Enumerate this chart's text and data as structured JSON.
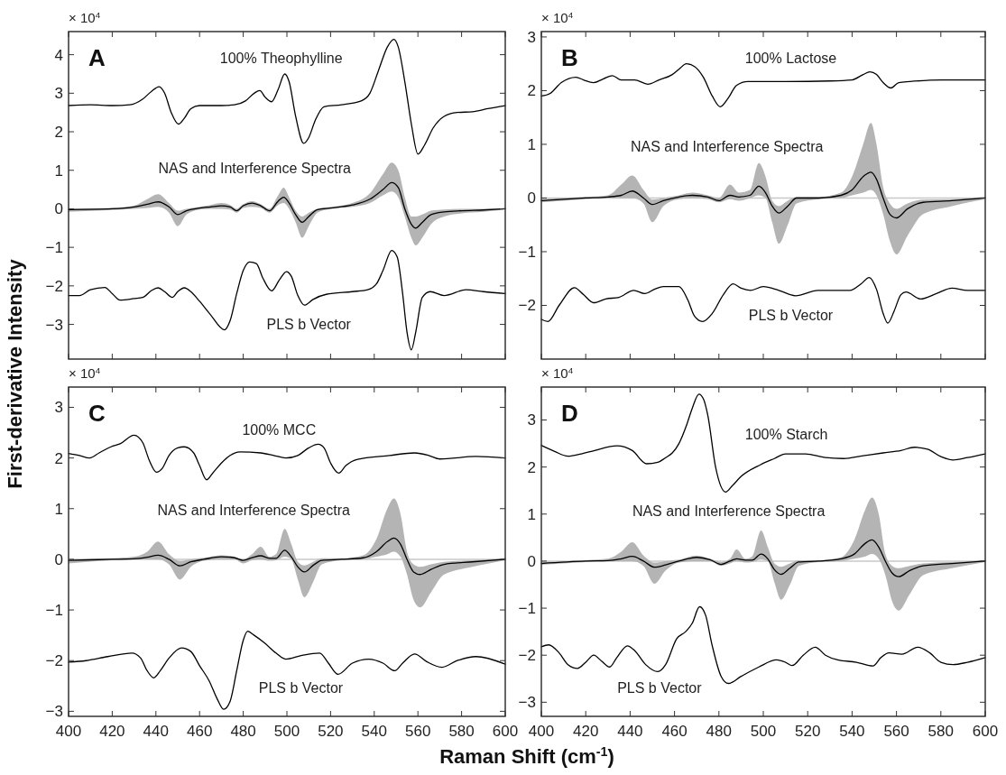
{
  "chart_data": [
    {
      "type": "line",
      "title": "A",
      "ylabel": "First-derivative Intensity",
      "tick_labels": "y",
      "xlim": [
        400,
        600
      ],
      "xticks": [
        400,
        420,
        440,
        460,
        480,
        500,
        520,
        540,
        560,
        580,
        600
      ],
      "ylim": [
        -3.9,
        4.6
      ],
      "yticks": [
        -3,
        -2,
        -1,
        0,
        1,
        2,
        3,
        4
      ],
      "annotations": [
        "× 10$^{4}$",
        "100% Theophylline",
        "NAS and Interference Spectra",
        "PLS b Vector"
      ],
      "series": [
        {
          "color": "#000000",
          "x": [
            400,
            410,
            420,
            428,
            434,
            438,
            441.5,
            444,
            447,
            450.3,
            453,
            456,
            460,
            470,
            476,
            481,
            485,
            487.6,
            490,
            493,
            496,
            499,
            501,
            504,
            507.7,
            510,
            513,
            517,
            525,
            534,
            538,
            542,
            546,
            549,
            551,
            554,
            557,
            560,
            563,
            567,
            572,
            578,
            585,
            592,
            600
          ],
          "values": [
            2.68,
            2.7,
            2.68,
            2.7,
            2.85,
            3.05,
            3.17,
            3.0,
            2.5,
            2.2,
            2.35,
            2.6,
            2.68,
            2.68,
            2.7,
            2.8,
            3.0,
            3.07,
            2.9,
            2.78,
            3.1,
            3.5,
            3.3,
            2.4,
            1.7,
            1.85,
            2.3,
            2.65,
            2.7,
            2.8,
            3.0,
            3.6,
            4.2,
            4.4,
            4.2,
            3.3,
            2.2,
            1.42,
            1.65,
            2.1,
            2.4,
            2.5,
            2.52,
            2.6,
            2.68
          ]
        },
        {
          "color": "#000000",
          "x": [
            400,
            420,
            430,
            436,
            441,
            446,
            450,
            454,
            460,
            465,
            470,
            474,
            477,
            480,
            484,
            488,
            492,
            496,
            498.5,
            501,
            504,
            507,
            510,
            514,
            520,
            530,
            538,
            544,
            548,
            551,
            554,
            557,
            559,
            562,
            566,
            572,
            580,
            590,
            600
          ],
          "values": [
            -0.02,
            0,
            0.05,
            0.12,
            0.18,
            0.05,
            -0.15,
            -0.05,
            0.02,
            0.05,
            0.08,
            0.05,
            -0.05,
            0.08,
            0.15,
            0.08,
            -0.05,
            0.2,
            0.3,
            0.15,
            -0.15,
            -0.35,
            -0.2,
            -0.02,
            0.02,
            0.1,
            0.25,
            0.5,
            0.68,
            0.55,
            0,
            -0.4,
            -0.5,
            -0.35,
            -0.15,
            -0.08,
            -0.05,
            -0.03,
            0
          ],
          "upper": [
            0,
            0.02,
            0.08,
            0.25,
            0.38,
            0.15,
            -0.05,
            0,
            0.05,
            0.1,
            0.15,
            0.1,
            0,
            0.12,
            0.2,
            0.12,
            0,
            0.35,
            0.55,
            0.3,
            -0.05,
            -0.2,
            -0.1,
            0,
            0.05,
            0.15,
            0.4,
            0.9,
            1.2,
            1.0,
            0.3,
            -0.2,
            -0.2,
            -0.15,
            -0.05,
            -0.02,
            0,
            0,
            0
          ],
          "lower": [
            -0.08,
            -0.03,
            0,
            0.02,
            0.05,
            -0.1,
            -0.45,
            -0.15,
            -0.02,
            0,
            0,
            -0.02,
            -0.1,
            0.02,
            0.05,
            0.02,
            -0.1,
            0.1,
            0.15,
            0,
            -0.35,
            -0.75,
            -0.45,
            -0.1,
            0,
            0.05,
            0.15,
            0.35,
            0.45,
            0.3,
            -0.2,
            -0.75,
            -0.95,
            -0.75,
            -0.4,
            -0.2,
            -0.12,
            -0.08,
            -0.02
          ]
        },
        {
          "color": "#000000",
          "x": [
            400,
            405,
            410,
            416.6,
            420,
            423.6,
            430,
            434,
            438,
            441,
            444,
            447.5,
            450,
            453,
            456,
            460,
            465,
            471.4,
            474,
            477,
            480,
            483,
            486,
            489,
            493,
            496.5,
            499.8,
            502,
            505,
            508,
            512,
            518,
            530,
            537,
            541,
            544,
            548,
            550.5,
            553,
            555,
            557,
            559,
            562,
            565.6,
            572,
            582,
            590,
            600
          ],
          "values": [
            -2.25,
            -2.25,
            -2.1,
            -2.04,
            -2.2,
            -2.37,
            -2.33,
            -2.3,
            -2.12,
            -2.05,
            -2.15,
            -2.3,
            -2.15,
            -2.05,
            -2.15,
            -2.4,
            -2.75,
            -3.14,
            -2.9,
            -2.2,
            -1.6,
            -1.38,
            -1.42,
            -1.8,
            -2.13,
            -1.85,
            -1.63,
            -1.75,
            -2.25,
            -2.5,
            -2.35,
            -2.22,
            -2.15,
            -2.1,
            -1.95,
            -1.6,
            -1.08,
            -1.25,
            -2.2,
            -3.2,
            -3.66,
            -3.2,
            -2.3,
            -2.15,
            -2.25,
            -2.1,
            -2.15,
            -2.2
          ]
        }
      ]
    },
    {
      "type": "line",
      "title": "B",
      "tick_labels": "y",
      "xlim": [
        400,
        600
      ],
      "xticks": [
        400,
        420,
        440,
        460,
        480,
        500,
        520,
        540,
        560,
        580,
        600
      ],
      "ylim": [
        -3,
        3.1
      ],
      "yticks": [
        -2,
        -1,
        0,
        1,
        2,
        3
      ],
      "ref_lines": [
        {
          "axis": "y",
          "value": 0,
          "color": "#c8c8c8"
        }
      ],
      "annotations": [
        "× 10$^{4}$",
        "100% Lactose",
        "NAS and Interference Spectra",
        "PLS b Vector"
      ],
      "series": [
        {
          "color": "#000000",
          "x": [
            400,
            404,
            409,
            415.6,
            419,
            423.5,
            428,
            432,
            436,
            442,
            448,
            453,
            459,
            462,
            465.4,
            469,
            473,
            477,
            480.6,
            484,
            488,
            493,
            510,
            530,
            540,
            545,
            548,
            551,
            554,
            557.5,
            561,
            566,
            580,
            600
          ],
          "values": [
            1.9,
            1.95,
            2.15,
            2.25,
            2.2,
            2.15,
            2.22,
            2.28,
            2.2,
            2.2,
            2.12,
            2.2,
            2.3,
            2.4,
            2.5,
            2.45,
            2.25,
            1.9,
            1.7,
            1.85,
            2.1,
            2.17,
            2.17,
            2.18,
            2.2,
            2.3,
            2.35,
            2.3,
            2.15,
            2.05,
            2.15,
            2.17,
            2.2,
            2.2
          ]
        },
        {
          "color": "#000000",
          "x": [
            400,
            420,
            430,
            436,
            441,
            446,
            450,
            455,
            462,
            468,
            475,
            480,
            485,
            489,
            494,
            498,
            501,
            504,
            507,
            511,
            515,
            525,
            535,
            540,
            545,
            548.5,
            551,
            554,
            557,
            560,
            565,
            572,
            585,
            600
          ],
          "values": [
            -0.05,
            0,
            0.02,
            0.05,
            0.13,
            0,
            -0.12,
            -0.05,
            0.02,
            0.05,
            0.02,
            -0.05,
            0.05,
            0.02,
            0.05,
            0.22,
            0.1,
            -0.15,
            -0.28,
            -0.15,
            0,
            0,
            0.05,
            0.15,
            0.4,
            0.48,
            0.35,
            0,
            -0.3,
            -0.37,
            -0.2,
            -0.08,
            -0.05,
            0
          ],
          "upper": [
            -0.02,
            0.02,
            0.05,
            0.25,
            0.42,
            0.15,
            -0.03,
            0,
            0.05,
            0.1,
            0.05,
            0,
            0.25,
            0.1,
            0.15,
            0.65,
            0.4,
            -0.05,
            -0.15,
            -0.05,
            0.02,
            0.02,
            0.1,
            0.4,
            1.0,
            1.4,
            1.0,
            0.2,
            -0.1,
            -0.2,
            -0.1,
            -0.03,
            -0.02,
            0.02
          ],
          "lower": [
            -0.08,
            -0.02,
            0,
            0,
            0,
            -0.1,
            -0.45,
            -0.15,
            -0.02,
            0,
            -0.02,
            -0.08,
            -0.02,
            -0.05,
            0,
            0.05,
            0,
            -0.45,
            -0.85,
            -0.5,
            -0.1,
            -0.02,
            0,
            0.05,
            0.1,
            0.15,
            0.05,
            -0.3,
            -0.8,
            -1.05,
            -0.7,
            -0.3,
            -0.15,
            -0.02
          ]
        },
        {
          "color": "#000000",
          "x": [
            400,
            403,
            408,
            414.9,
            419,
            423.5,
            429,
            435,
            441.6,
            446.6,
            451,
            455,
            462,
            466,
            469,
            472.6,
            477,
            482,
            486.4,
            490,
            494.3,
            500,
            507,
            514.5,
            524.6,
            539,
            544,
            547.7,
            551,
            554,
            556.1,
            559,
            562,
            564.3,
            570.8,
            578,
            585,
            592,
            600
          ],
          "values": [
            -2.26,
            -2.3,
            -2.0,
            -1.67,
            -1.8,
            -1.95,
            -1.88,
            -1.85,
            -1.72,
            -1.78,
            -1.7,
            -1.65,
            -1.65,
            -1.9,
            -2.2,
            -2.3,
            -2.15,
            -1.8,
            -1.6,
            -1.68,
            -1.72,
            -1.65,
            -1.72,
            -1.82,
            -1.72,
            -1.72,
            -1.6,
            -1.48,
            -1.7,
            -2.15,
            -2.33,
            -2.1,
            -1.8,
            -1.75,
            -1.88,
            -1.78,
            -1.68,
            -1.72,
            -1.72
          ]
        }
      ]
    },
    {
      "type": "line",
      "title": "C",
      "xlabel": "Raman Shift (cm$^{-1}$)",
      "xlim": [
        400,
        600
      ],
      "xticks": [
        400,
        420,
        440,
        460,
        480,
        500,
        520,
        540,
        560,
        580,
        600
      ],
      "ylim": [
        -3.1,
        3.4
      ],
      "yticks": [
        -3,
        -2,
        -1,
        0,
        1,
        2,
        3
      ],
      "ref_lines": [
        {
          "axis": "y",
          "value": 0,
          "color": "#c8c8c8"
        }
      ],
      "annotations": [
        "× 10$^{4}$",
        "100% MCC",
        "NAS and Interference Spectra",
        "PLS b Vector"
      ],
      "series": [
        {
          "color": "#000000",
          "x": [
            400,
            405,
            409.6,
            414,
            419.4,
            423.6,
            430,
            434,
            437,
            440.2,
            443,
            446,
            450,
            453,
            457.3,
            460,
            463.2,
            466,
            470,
            474,
            478.4,
            488,
            494,
            499.5,
            505,
            510,
            514.3,
            517,
            520,
            523.7,
            527,
            532,
            547,
            558.5,
            565,
            570,
            586.6,
            600
          ],
          "values": [
            2.09,
            2.05,
            2.0,
            2.1,
            2.22,
            2.28,
            2.45,
            2.3,
            1.95,
            1.72,
            1.8,
            2.05,
            2.2,
            2.22,
            2.1,
            1.85,
            1.57,
            1.7,
            1.9,
            2.05,
            2.12,
            2.1,
            2.05,
            2.0,
            2.05,
            2.2,
            2.27,
            2.2,
            1.9,
            1.7,
            1.85,
            1.97,
            2.05,
            2.1,
            2.05,
            1.98,
            2.03,
            2.0
          ]
        },
        {
          "color": "#000000",
          "x": [
            400,
            420,
            430,
            436,
            441,
            446,
            451,
            456,
            462,
            470,
            476,
            480,
            484,
            488,
            492,
            495,
            499,
            502,
            505,
            508,
            512,
            516,
            525,
            535,
            541,
            546,
            549,
            552,
            555,
            558,
            561,
            566,
            572,
            585,
            600
          ],
          "values": [
            -0.02,
            0,
            0.01,
            0.04,
            0.08,
            0,
            -0.13,
            -0.05,
            0,
            0.05,
            0.03,
            -0.02,
            0.03,
            0.07,
            0.02,
            0.02,
            0.18,
            0.05,
            -0.15,
            -0.25,
            -0.12,
            -0.02,
            0,
            0.03,
            0.15,
            0.35,
            0.42,
            0.3,
            0,
            -0.25,
            -0.3,
            -0.2,
            -0.1,
            -0.05,
            0
          ],
          "upper": [
            0,
            0.02,
            0.05,
            0.15,
            0.35,
            0.1,
            -0.03,
            0,
            0.03,
            0.08,
            0.05,
            0,
            0.1,
            0.25,
            0.05,
            0.1,
            0.6,
            0.3,
            -0.05,
            -0.12,
            -0.05,
            0.02,
            0.02,
            0.08,
            0.4,
            1.0,
            1.2,
            0.9,
            0.15,
            -0.1,
            -0.15,
            -0.1,
            -0.05,
            -0.02,
            0.02
          ],
          "lower": [
            -0.08,
            -0.02,
            0,
            0,
            0,
            -0.1,
            -0.4,
            -0.15,
            -0.03,
            0,
            0,
            -0.08,
            -0.02,
            0,
            -0.03,
            -0.02,
            0.05,
            0,
            -0.4,
            -0.75,
            -0.45,
            -0.1,
            -0.02,
            0,
            0.05,
            0.1,
            0.15,
            0.05,
            -0.3,
            -0.8,
            -0.95,
            -0.65,
            -0.3,
            -0.15,
            -0.02
          ]
        },
        {
          "color": "#000000",
          "x": [
            400,
            408,
            418,
            429,
            433,
            436,
            439,
            442,
            446,
            451.7,
            456,
            460,
            464.4,
            468,
            471,
            474,
            477,
            480,
            482,
            485,
            489.7,
            495,
            499.5,
            506.5,
            515,
            519,
            523.4,
            530,
            537.5,
            544,
            549.4,
            553,
            558.5,
            564,
            571,
            578,
            586.6,
            600
          ],
          "values": [
            -2.03,
            -2.0,
            -1.92,
            -1.85,
            -1.95,
            -2.2,
            -2.34,
            -2.2,
            -1.95,
            -1.75,
            -1.82,
            -2.1,
            -2.4,
            -2.75,
            -2.96,
            -2.8,
            -2.2,
            -1.6,
            -1.42,
            -1.5,
            -1.65,
            -1.85,
            -1.97,
            -1.9,
            -1.85,
            -2.05,
            -2.27,
            -2.05,
            -1.97,
            -2.05,
            -2.2,
            -2.05,
            -1.87,
            -2.02,
            -2.13,
            -2.0,
            -1.92,
            -2.07
          ]
        }
      ]
    },
    {
      "type": "line",
      "title": "D",
      "xlim": [
        400,
        600
      ],
      "xticks": [
        400,
        420,
        440,
        460,
        480,
        500,
        520,
        540,
        560,
        580,
        600
      ],
      "ylim": [
        -3.3,
        3.7
      ],
      "yticks": [
        -3,
        -2,
        -1,
        0,
        1,
        2,
        3
      ],
      "ref_lines": [
        {
          "axis": "y",
          "value": 0,
          "color": "#c8c8c8"
        }
      ],
      "annotations": [
        "× 10$^{4}$",
        "100% Starch",
        "NAS and Interference Spectra",
        "PLS b Vector"
      ],
      "series": [
        {
          "color": "#000000",
          "x": [
            400,
            406,
            412,
            418,
            424,
            434,
            441,
            447.4,
            452.5,
            456,
            459,
            462,
            465.5,
            468,
            471,
            473,
            475,
            478.5,
            483,
            486,
            490,
            498.8,
            505,
            510,
            519,
            528,
            536,
            545,
            554,
            562,
            568,
            574,
            580,
            585.5,
            592,
            600
          ],
          "values": [
            2.46,
            2.33,
            2.23,
            2.28,
            2.35,
            2.45,
            2.35,
            2.07,
            2.1,
            2.2,
            2.3,
            2.5,
            2.9,
            3.25,
            3.55,
            3.45,
            3.1,
            2.0,
            1.47,
            1.6,
            1.8,
            2.05,
            2.18,
            2.28,
            2.28,
            2.2,
            2.18,
            2.24,
            2.3,
            2.35,
            2.42,
            2.38,
            2.22,
            2.15,
            2.2,
            2.28
          ]
        },
        {
          "color": "#000000",
          "x": [
            400,
            420,
            430,
            436,
            441,
            446,
            451,
            456,
            462,
            470,
            476,
            481,
            485,
            488,
            492,
            495,
            499,
            502,
            505,
            508,
            512,
            516,
            525,
            535,
            541,
            546,
            549,
            552,
            555,
            558,
            561,
            566,
            572,
            585,
            600
          ],
          "values": [
            -0.05,
            0,
            0.01,
            0.05,
            0.1,
            0,
            -0.13,
            -0.08,
            0,
            0.08,
            0.03,
            -0.07,
            0,
            0.05,
            0.02,
            0.02,
            0.15,
            0.05,
            -0.18,
            -0.28,
            -0.15,
            -0.02,
            0,
            0.05,
            0.15,
            0.38,
            0.45,
            0.3,
            0,
            -0.25,
            -0.33,
            -0.2,
            -0.1,
            -0.05,
            0
          ],
          "upper": [
            -0.02,
            0.02,
            0.05,
            0.2,
            0.4,
            0.12,
            -0.03,
            0,
            0.03,
            0.12,
            0.05,
            -0.02,
            0.05,
            0.25,
            0.05,
            0.1,
            0.65,
            0.3,
            -0.05,
            -0.12,
            -0.05,
            0.02,
            0.02,
            0.08,
            0.45,
            1.1,
            1.35,
            1.0,
            0.15,
            -0.1,
            -0.15,
            -0.1,
            -0.05,
            -0.02,
            0.02
          ],
          "lower": [
            -0.08,
            -0.02,
            0,
            0,
            0,
            -0.1,
            -0.48,
            -0.2,
            -0.03,
            0,
            0,
            -0.1,
            -0.05,
            0,
            -0.03,
            -0.02,
            0.03,
            0,
            -0.45,
            -0.82,
            -0.5,
            -0.1,
            -0.02,
            0,
            0.05,
            0.1,
            0.15,
            0.05,
            -0.3,
            -0.85,
            -1.05,
            -0.7,
            -0.3,
            -0.15,
            -0.02
          ]
        },
        {
          "color": "#000000",
          "x": [
            400,
            403.3,
            408,
            412,
            416.3,
            420,
            423.6,
            427,
            430.8,
            434,
            438.8,
            442,
            447,
            452.5,
            456,
            461,
            465,
            468,
            471.3,
            474,
            477,
            481,
            484.3,
            490,
            498,
            506,
            510,
            513,
            518,
            523.4,
            528,
            533.5,
            542,
            549.4,
            553,
            556.6,
            562.4,
            569.6,
            575,
            580,
            585.5,
            592,
            600
          ],
          "values": [
            -1.82,
            -1.78,
            -1.95,
            -2.2,
            -2.28,
            -2.15,
            -2.0,
            -2.12,
            -2.25,
            -2.05,
            -1.8,
            -1.9,
            -2.2,
            -2.35,
            -2.2,
            -1.65,
            -1.5,
            -1.32,
            -0.97,
            -1.15,
            -1.8,
            -2.45,
            -2.6,
            -2.45,
            -2.25,
            -2.1,
            -2.15,
            -2.22,
            -2.0,
            -1.83,
            -2.0,
            -2.1,
            -2.15,
            -2.23,
            -2.05,
            -1.95,
            -1.98,
            -1.83,
            -1.95,
            -2.15,
            -2.2,
            -2.15,
            -2.05
          ]
        }
      ]
    }
  ]
}
